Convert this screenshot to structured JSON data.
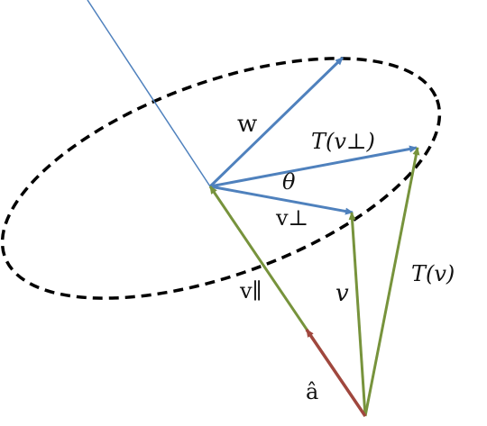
{
  "diagram": {
    "labels": {
      "w": "w",
      "T_v_perp": "T(v⊥)",
      "theta": "θ",
      "v_perp": "v⊥",
      "v_par": "v∥",
      "v": "v",
      "T_v": "T(v)",
      "a_hat": "â"
    },
    "colors": {
      "blue": "#4f81bd",
      "green": "#77933c",
      "red": "#a0473e",
      "ellipse": "#000000"
    }
  }
}
